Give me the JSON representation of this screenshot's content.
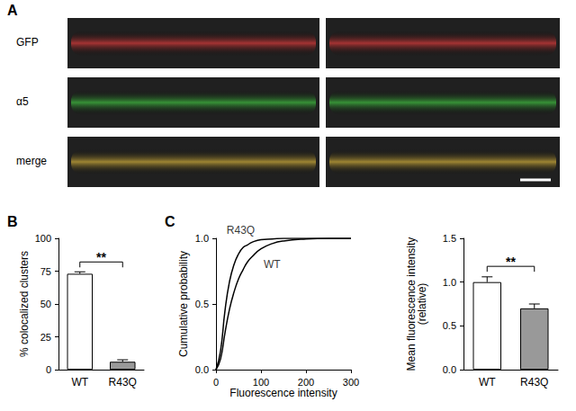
{
  "figure": {
    "panel": "A",
    "image_rows": [
      "GFP",
      "α5",
      "merge"
    ]
  },
  "chart_data": [
    {
      "type": "bar",
      "panel": "B",
      "categories": [
        "WT",
        "R43Q"
      ],
      "values": [
        73,
        6
      ],
      "errors": [
        1.5,
        1.5
      ],
      "colors": [
        "#ffffff",
        "#999999"
      ],
      "ylabel": "% colocalized clusters",
      "ylim": [
        0,
        100
      ],
      "yticks": [
        0,
        25,
        50,
        75,
        100
      ],
      "grid": false,
      "annotations": [
        {
          "text": "**",
          "between": [
            "WT",
            "R43Q"
          ],
          "y": 82
        }
      ]
    },
    {
      "type": "line",
      "panel": "C",
      "xlabel": "Fluorescence intensity",
      "ylabel": "Cumulative probability",
      "x": [
        0,
        10,
        20,
        30,
        40,
        50,
        60,
        70,
        80,
        100,
        125,
        150,
        200,
        250,
        300
      ],
      "series": [
        {
          "name": "R43Q",
          "color": "#000000",
          "values": [
            0,
            0.14,
            0.45,
            0.67,
            0.8,
            0.88,
            0.93,
            0.95,
            0.97,
            0.99,
            0.995,
            1,
            1,
            1,
            1
          ]
        },
        {
          "name": "WT",
          "color": "#000000",
          "values": [
            0,
            0.08,
            0.28,
            0.46,
            0.59,
            0.69,
            0.76,
            0.82,
            0.86,
            0.92,
            0.96,
            0.98,
            0.995,
            1,
            1
          ]
        }
      ],
      "xlim": [
        0,
        300
      ],
      "xticks": [
        0,
        100,
        200,
        300
      ],
      "ylim": [
        0,
        1
      ],
      "yticks": [
        {
          "value": 0,
          "label": "0.0"
        },
        {
          "value": 0.5,
          "label": "0.5"
        },
        {
          "value": 1,
          "label": "1.0"
        }
      ],
      "grid": false,
      "annotations": [
        {
          "text": "R43Q",
          "x": 55,
          "y": 1
        },
        {
          "text": "WT",
          "x": 100,
          "y": 0.8
        }
      ]
    },
    {
      "type": "bar",
      "categories": [
        "WT",
        "R43Q"
      ],
      "values": [
        1.0,
        0.7
      ],
      "errors": [
        0.06,
        0.05
      ],
      "colors": [
        "#ffffff",
        "#999999"
      ],
      "ylabel": "Mean fluorescence intensity\n(relative)",
      "ylim": [
        0,
        1.5
      ],
      "yticks": [
        {
          "value": 0,
          "label": "0.0"
        },
        {
          "value": 0.5,
          "label": "0.5"
        },
        {
          "value": 1,
          "label": "1.0"
        },
        {
          "value": 1.5,
          "label": "1.5"
        }
      ],
      "grid": false,
      "annotations": [
        {
          "text": "**",
          "between": [
            "WT",
            "R43Q"
          ],
          "y": 1.18
        }
      ]
    }
  ]
}
